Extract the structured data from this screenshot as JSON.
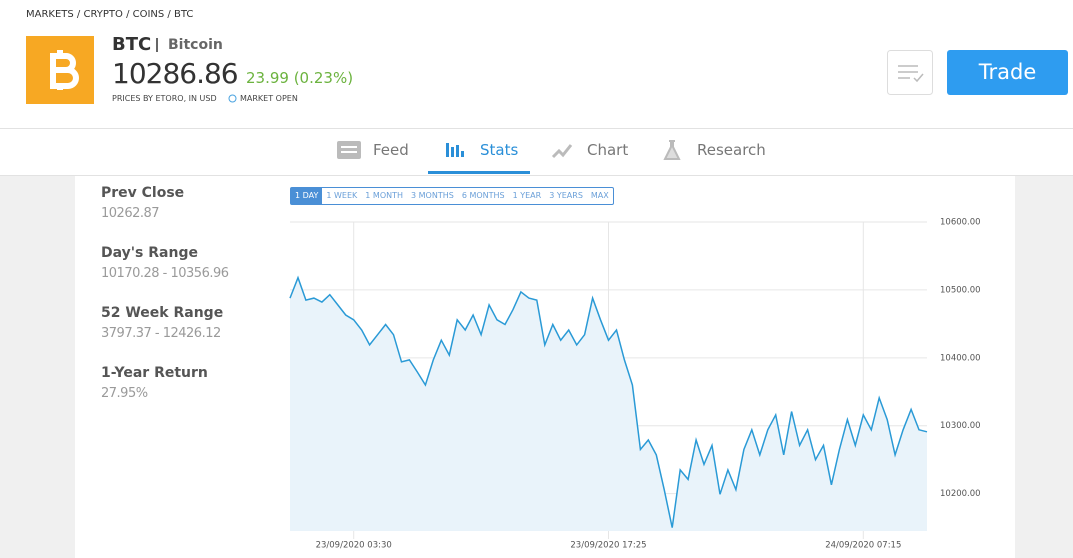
{
  "breadcrumb": "MARKETS / CRYPTO / COINS / BTC",
  "header": {
    "symbol": "BTC",
    "name": "Bitcoin",
    "price": "10286.86",
    "change": "23.99 (0.23%)",
    "note": "PRICES BY ETORO, IN USD",
    "status": "MARKET OPEN",
    "trade": "Trade"
  },
  "tabs": [
    "Feed",
    "Stats",
    "Chart",
    "Research"
  ],
  "stats": [
    {
      "label": "Prev Close",
      "value": "10262.87"
    },
    {
      "label": "Day's Range",
      "value": "10170.28 - 10356.96"
    },
    {
      "label": "52 Week Range",
      "value": "3797.37 - 12426.12"
    },
    {
      "label": "1-Year Return",
      "value": "27.95%"
    }
  ],
  "ranges": [
    "1 DAY",
    "1 WEEK",
    "1 MONTH",
    "3 MONTHS",
    "6 MONTHS",
    "1 YEAR",
    "3 YEARS",
    "MAX"
  ],
  "chart_data": {
    "type": "area",
    "color": "#2a9ad6",
    "values": [
      10488,
      10518,
      10485,
      10488,
      10482,
      10493,
      10478,
      10463,
      10456,
      10441,
      10419,
      10434,
      10449,
      10434,
      10394,
      10397,
      10379,
      10360,
      10397,
      10426,
      10404,
      10456,
      10441,
      10463,
      10434,
      10478,
      10456,
      10449,
      10471,
      10497,
      10488,
      10485,
      10419,
      10449,
      10426,
      10441,
      10419,
      10434,
      10488,
      10456,
      10426,
      10441,
      10397,
      10360,
      10265,
      10279,
      10257,
      10206,
      10150,
      10235,
      10221,
      10279,
      10243,
      10271,
      10199,
      10235,
      10206,
      10265,
      10294,
      10257,
      10294,
      10316,
      10257,
      10321,
      10271,
      10294,
      10250,
      10271,
      10213,
      10265,
      10309,
      10271,
      10316,
      10294,
      10341,
      10309,
      10257,
      10294,
      10324,
      10294,
      10291
    ],
    "xlim": [
      0,
      80
    ],
    "xticks": [
      {
        "value": 8,
        "label": "23/09/2020 03:30"
      },
      {
        "value": 40,
        "label": "23/09/2020 17:25"
      },
      {
        "value": 72,
        "label": "24/09/2020 07:15"
      }
    ],
    "ylim": [
      10145,
      10600
    ],
    "yticks": [
      {
        "value": 10600,
        "label": "10600.00"
      },
      {
        "value": 10500,
        "label": "10500.00"
      },
      {
        "value": 10400,
        "label": "10400.00"
      },
      {
        "value": 10300,
        "label": "10300.00"
      },
      {
        "value": 10200,
        "label": "10200.00"
      }
    ],
    "grid": true
  }
}
